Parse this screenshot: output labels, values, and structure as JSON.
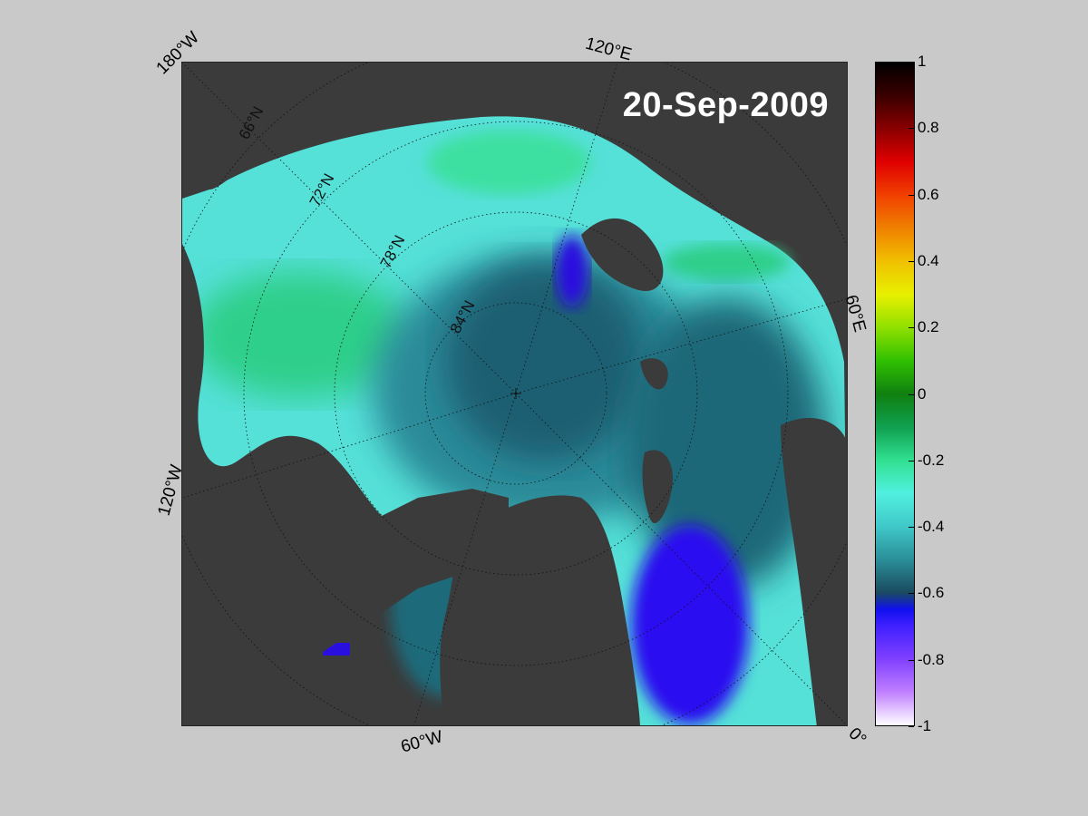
{
  "date": "20-Sep-2009",
  "lon_labels": {
    "w180": "180°W",
    "e120": "120°E",
    "e60": "60°E",
    "w120": "120°W",
    "w60": "60°W",
    "zero": "0°"
  },
  "lat_labels": [
    "66°N",
    "72°N",
    "78°N",
    "84°N"
  ],
  "colorbar": {
    "ticks": [
      "1",
      "0.8",
      "0.6",
      "0.4",
      "0.2",
      "0",
      "-0.2",
      "-0.4",
      "-0.6",
      "-0.8",
      "-1"
    ],
    "range": [
      -1,
      1
    ]
  },
  "colors": {
    "background": "#c9c9c9",
    "land": "#3b3b3b",
    "ice_edge": "#7a7a7a",
    "positive_anomaly": "#2ee08a",
    "near_zero": "#55e8dc",
    "negative_anomaly": "#1c5a6c",
    "strong_negative": "#2a10f0"
  }
}
